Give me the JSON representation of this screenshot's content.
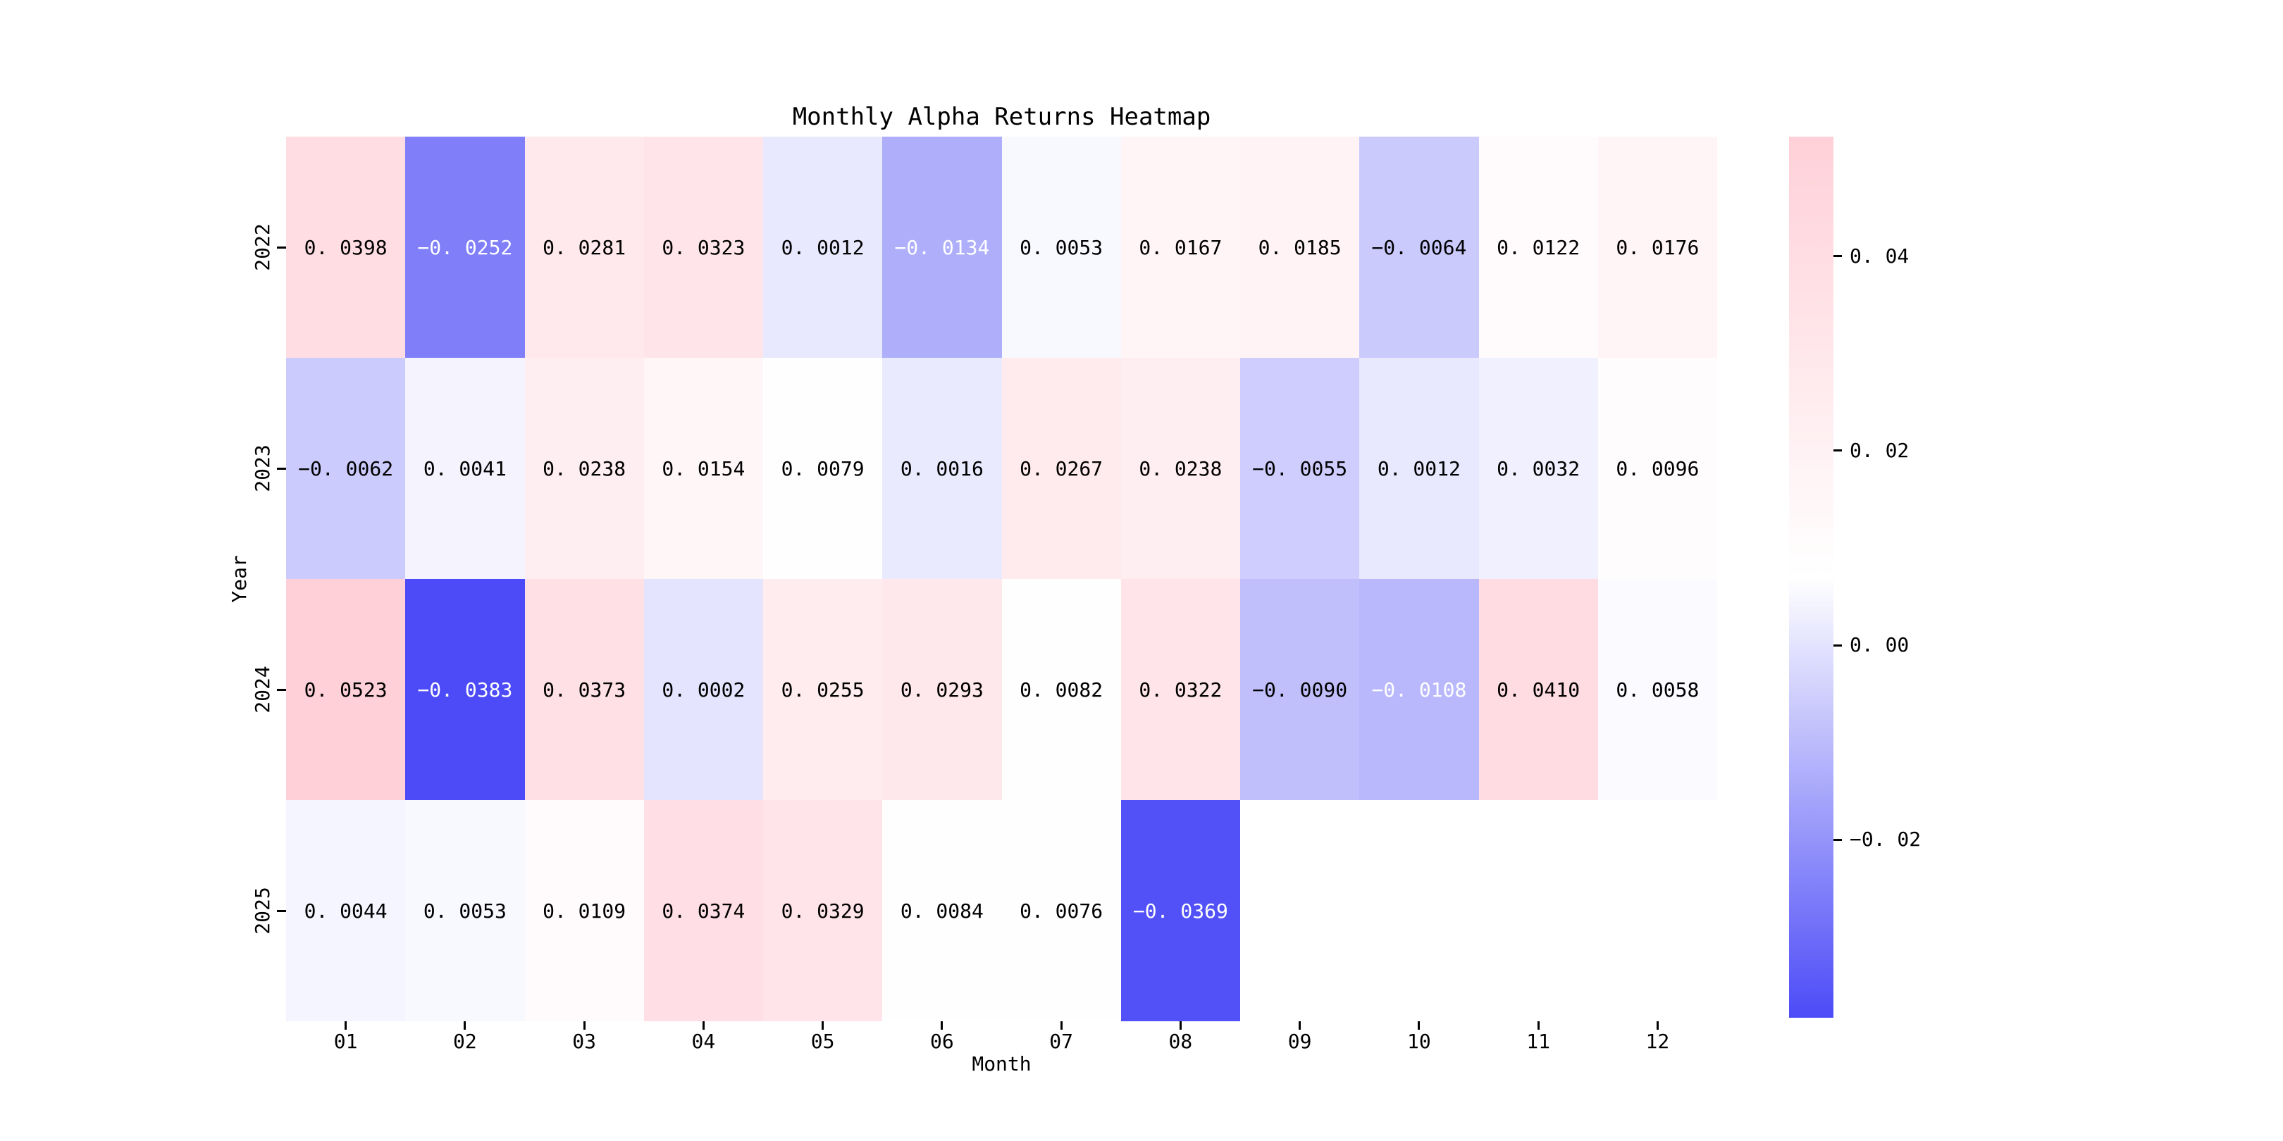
{
  "chart_data": {
    "type": "heatmap",
    "title": "Monthly Alpha Returns Heatmap",
    "xlabel": "Month",
    "ylabel": "Year",
    "columns": [
      "01",
      "02",
      "03",
      "04",
      "05",
      "06",
      "07",
      "08",
      "09",
      "10",
      "11",
      "12"
    ],
    "rows": [
      "2022",
      "2023",
      "2024",
      "2025"
    ],
    "values": [
      [
        0.0398,
        -0.0252,
        0.0281,
        0.0323,
        0.0012,
        -0.0134,
        0.0053,
        0.0167,
        0.0185,
        -0.0064,
        0.0122,
        0.0176
      ],
      [
        -0.0062,
        0.0041,
        0.0238,
        0.0154,
        0.0079,
        0.0016,
        0.0267,
        0.0238,
        -0.0055,
        0.0012,
        0.0032,
        0.0096
      ],
      [
        0.0523,
        -0.0383,
        0.0373,
        0.0002,
        0.0255,
        0.0293,
        0.0082,
        0.0322,
        -0.009,
        -0.0108,
        0.041,
        0.0058
      ],
      [
        0.0044,
        0.0053,
        0.0109,
        0.0374,
        0.0329,
        0.0084,
        0.0076,
        -0.0369,
        null,
        null,
        null,
        null
      ]
    ],
    "vmin": -0.0383,
    "vmax": 0.0523,
    "colorbar_ticks": [
      0.04,
      0.02,
      0.0,
      -0.02
    ],
    "cell_value_decimals": 4,
    "colorbar_tick_decimals": 2,
    "grid": false,
    "legend": "colorbar-right",
    "colors": {
      "negative_end": "#4c4bf7",
      "center": "#ffffff",
      "positive_end": "#ffd0d8",
      "text_dark": "#000000",
      "text_light": "#ffffff",
      "background": "#ffffff"
    }
  }
}
